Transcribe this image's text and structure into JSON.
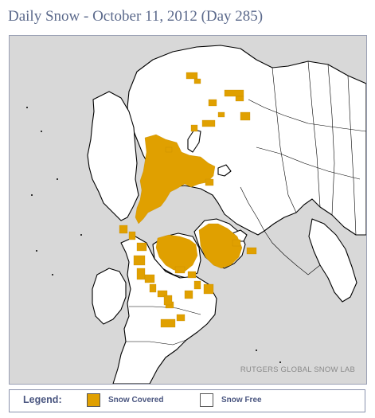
{
  "title": "Daily Snow - October 11, 2012 (Day 285)",
  "watermark": "RUTGERS GLOBAL SNOW LAB",
  "legend": {
    "title": "Legend:",
    "items": [
      {
        "label": "Snow Covered",
        "color": "#e0a000"
      },
      {
        "label": "Snow Free",
        "color": "#ffffff"
      }
    ]
  },
  "colors": {
    "ocean": "#d8d8d8",
    "land": "#ffffff",
    "snow": "#e0a000",
    "outline": "#000000"
  }
}
